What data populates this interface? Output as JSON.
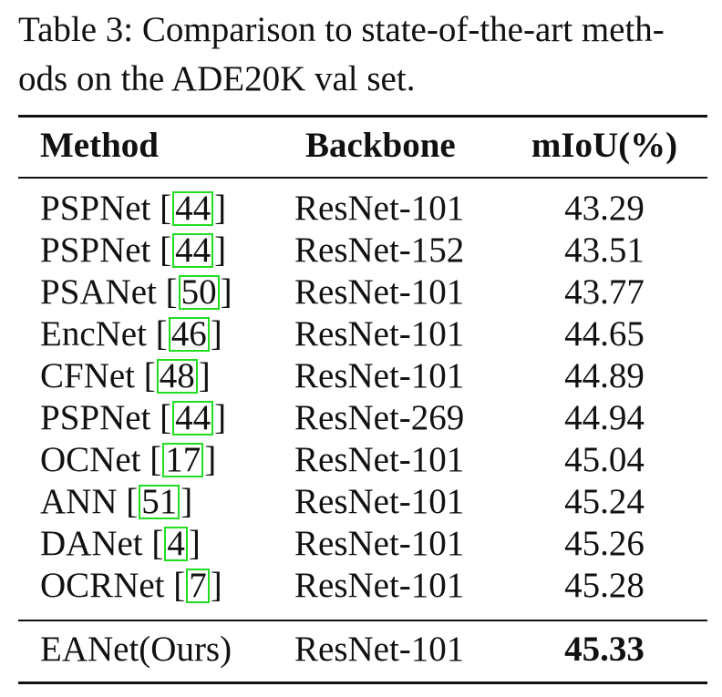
{
  "caption": {
    "line1": "Table 3: Comparison to state-of-the-art meth-",
    "line2": "ods on the ADE20K val set."
  },
  "table": {
    "headers": {
      "method": "Method",
      "backbone": "Backbone",
      "miou": "mIoU(%)"
    },
    "rows": [
      {
        "method": "PSPNet",
        "cite": "44",
        "backbone": "ResNet-101",
        "miou": "43.29"
      },
      {
        "method": "PSPNet",
        "cite": "44",
        "backbone": "ResNet-152",
        "miou": "43.51"
      },
      {
        "method": "PSANet",
        "cite": "50",
        "backbone": "ResNet-101",
        "miou": "43.77"
      },
      {
        "method": "EncNet",
        "cite": "46",
        "backbone": "ResNet-101",
        "miou": "44.65"
      },
      {
        "method": "CFNet",
        "cite": "48",
        "backbone": "ResNet-101",
        "miou": "44.89"
      },
      {
        "method": "PSPNet",
        "cite": "44",
        "backbone": "ResNet-269",
        "miou": "44.94"
      },
      {
        "method": "OCNet",
        "cite": "17",
        "backbone": "ResNet-101",
        "miou": "45.04"
      },
      {
        "method": "ANN",
        "cite": "51",
        "backbone": "ResNet-101",
        "miou": "45.24"
      },
      {
        "method": "DANet",
        "cite": "4",
        "backbone": "ResNet-101",
        "miou": "45.26"
      },
      {
        "method": "OCRNet",
        "cite": "7",
        "backbone": "ResNet-101",
        "miou": "45.28"
      }
    ],
    "final_row": {
      "method": "EANet(Ours)",
      "backbone": "ResNet-101",
      "miou": "45.33"
    }
  },
  "colors": {
    "text": "#111111",
    "citation_box": "#22dd22"
  }
}
